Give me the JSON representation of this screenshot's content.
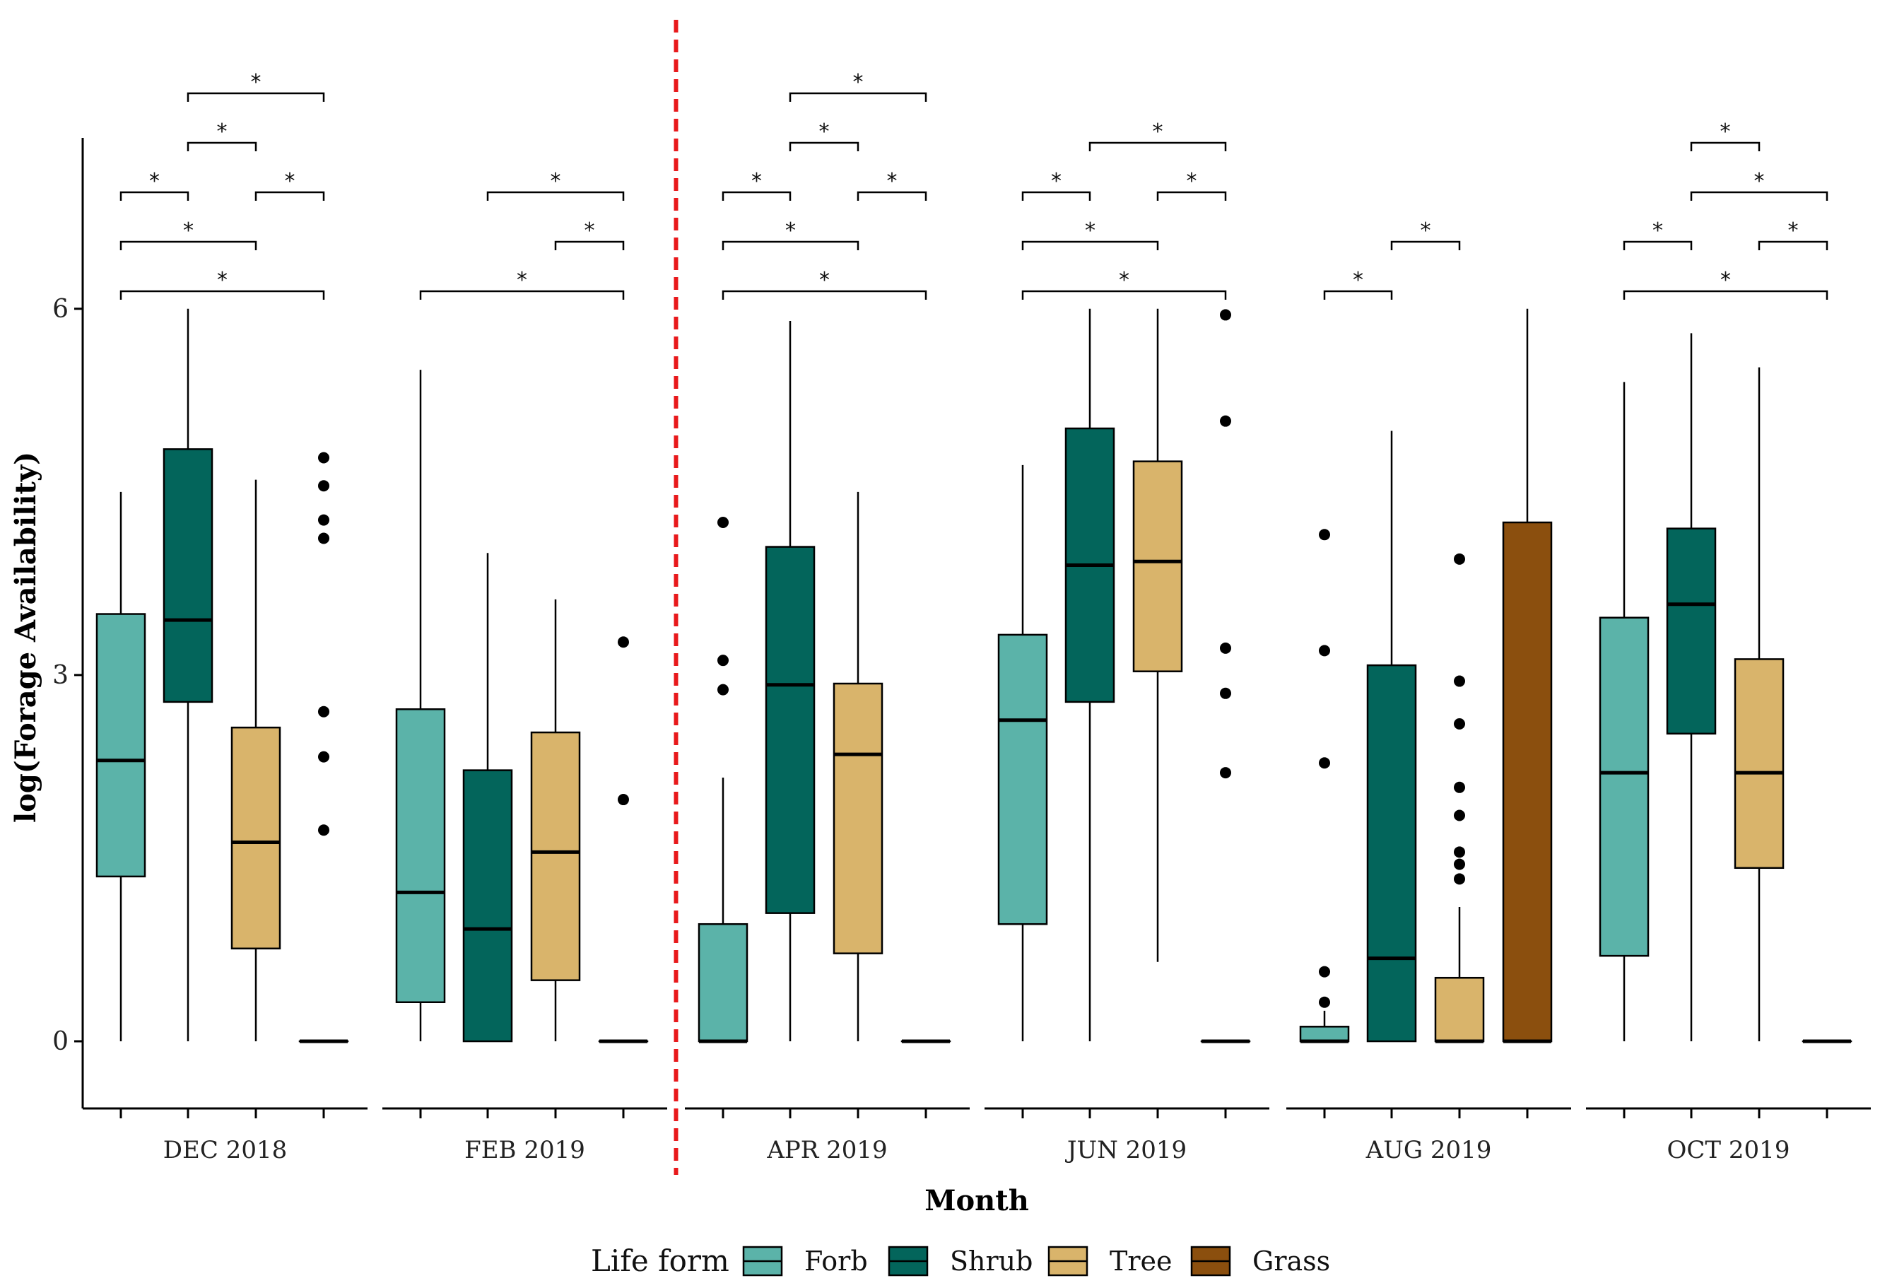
{
  "chart_data": {
    "type": "boxplot",
    "title": "",
    "xlabel": "Month",
    "ylabel": "log(Forage Availability)",
    "ylim": [
      -0.55,
      7.4
    ],
    "yticks": [
      0,
      3,
      6
    ],
    "grid": false,
    "legend": {
      "title": "Life form",
      "position": "bottom",
      "entries": [
        {
          "name": "Forb",
          "color": "#5BB3A9"
        },
        {
          "name": "Shrub",
          "color": "#03655B"
        },
        {
          "name": "Tree",
          "color": "#D9B46B"
        },
        {
          "name": "Grass",
          "color": "#8B4F0E"
        }
      ]
    },
    "separator": {
      "after_panel": 1,
      "color": "#E8191B",
      "style": "dashed"
    },
    "panels": [
      {
        "label": "DEC 2018",
        "boxes": [
          {
            "group": "Forb",
            "min": 0,
            "q1": 1.35,
            "median": 2.3,
            "q3": 3.5,
            "max": 4.5,
            "outliers": []
          },
          {
            "group": "Shrub",
            "min": 0,
            "q1": 2.78,
            "median": 3.45,
            "q3": 4.85,
            "max": 6.0,
            "outliers": []
          },
          {
            "group": "Tree",
            "min": 0,
            "q1": 0.76,
            "median": 1.63,
            "q3": 2.57,
            "max": 4.6,
            "outliers": []
          },
          {
            "group": "Grass",
            "min": 0,
            "q1": 0,
            "median": 0,
            "q3": 0,
            "max": 0,
            "outliers": [
              4.78,
              4.55,
              4.27,
              4.12,
              2.7,
              2.33,
              1.73
            ]
          }
        ],
        "comparisons": [
          {
            "from": 1,
            "to": 4,
            "level": 1,
            "label": "*"
          },
          {
            "from": 1,
            "to": 3,
            "level": 2,
            "label": "*"
          },
          {
            "from": 1,
            "to": 2,
            "level": 3,
            "label": "*"
          },
          {
            "from": 3,
            "to": 4,
            "level": 3,
            "label": "*"
          },
          {
            "from": 2,
            "to": 3,
            "level": 4,
            "label": "*"
          },
          {
            "from": 2,
            "to": 4,
            "level": 5,
            "label": "*"
          }
        ]
      },
      {
        "label": "FEB 2019",
        "boxes": [
          {
            "group": "Forb",
            "min": 0,
            "q1": 0.32,
            "median": 1.22,
            "q3": 2.72,
            "max": 5.5,
            "outliers": []
          },
          {
            "group": "Shrub",
            "min": 0,
            "q1": 0,
            "median": 0.92,
            "q3": 2.22,
            "max": 4.0,
            "outliers": []
          },
          {
            "group": "Tree",
            "min": 0,
            "q1": 0.5,
            "median": 1.55,
            "q3": 2.53,
            "max": 3.62,
            "outliers": []
          },
          {
            "group": "Grass",
            "min": 0,
            "q1": 0,
            "median": 0,
            "q3": 0,
            "max": 0,
            "outliers": [
              3.27,
              1.98
            ]
          }
        ],
        "comparisons": [
          {
            "from": 1,
            "to": 4,
            "level": 1,
            "label": "*"
          },
          {
            "from": 3,
            "to": 4,
            "level": 2,
            "label": "*"
          },
          {
            "from": 2,
            "to": 4,
            "level": 3,
            "label": "*"
          }
        ]
      },
      {
        "label": "APR 2019",
        "boxes": [
          {
            "group": "Forb",
            "min": 0,
            "q1": 0,
            "median": 0,
            "q3": 0.96,
            "max": 2.16,
            "outliers": [
              4.25,
              3.12,
              2.88
            ]
          },
          {
            "group": "Shrub",
            "min": 0,
            "q1": 1.05,
            "median": 2.92,
            "q3": 4.05,
            "max": 5.9,
            "outliers": []
          },
          {
            "group": "Tree",
            "min": 0,
            "q1": 0.72,
            "median": 2.35,
            "q3": 2.93,
            "max": 4.5,
            "outliers": []
          },
          {
            "group": "Grass",
            "min": 0,
            "q1": 0,
            "median": 0,
            "q3": 0,
            "max": 0,
            "outliers": []
          }
        ],
        "comparisons": [
          {
            "from": 1,
            "to": 4,
            "level": 1,
            "label": "*"
          },
          {
            "from": 1,
            "to": 3,
            "level": 2,
            "label": "*"
          },
          {
            "from": 1,
            "to": 2,
            "level": 3,
            "label": "*"
          },
          {
            "from": 3,
            "to": 4,
            "level": 3,
            "label": "*"
          },
          {
            "from": 2,
            "to": 3,
            "level": 4,
            "label": "*"
          },
          {
            "from": 2,
            "to": 4,
            "level": 5,
            "label": "*"
          }
        ]
      },
      {
        "label": "JUN 2019",
        "boxes": [
          {
            "group": "Forb",
            "min": 0,
            "q1": 0.96,
            "median": 2.63,
            "q3": 3.33,
            "max": 4.72,
            "outliers": []
          },
          {
            "group": "Shrub",
            "min": 0,
            "q1": 2.78,
            "median": 3.9,
            "q3": 5.02,
            "max": 6.0,
            "outliers": []
          },
          {
            "group": "Tree",
            "min": 0.65,
            "q1": 3.03,
            "median": 3.93,
            "q3": 4.75,
            "max": 6.0,
            "outliers": []
          },
          {
            "group": "Grass",
            "min": 0,
            "q1": 0,
            "median": 0,
            "q3": 0,
            "max": 0,
            "outliers": [
              5.95,
              5.08,
              3.22,
              2.85,
              2.2
            ]
          }
        ],
        "comparisons": [
          {
            "from": 1,
            "to": 4,
            "level": 1,
            "label": "*"
          },
          {
            "from": 1,
            "to": 3,
            "level": 2,
            "label": "*"
          },
          {
            "from": 1,
            "to": 2,
            "level": 3,
            "label": "*"
          },
          {
            "from": 3,
            "to": 4,
            "level": 3,
            "label": "*"
          },
          {
            "from": 2,
            "to": 4,
            "level": 4,
            "label": "*"
          }
        ]
      },
      {
        "label": "AUG 2019",
        "boxes": [
          {
            "group": "Forb",
            "min": 0,
            "q1": 0,
            "median": 0,
            "q3": 0.12,
            "max": 0.25,
            "outliers": [
              4.15,
              3.2,
              2.28,
              0.57,
              0.32
            ]
          },
          {
            "group": "Shrub",
            "min": 0,
            "q1": 0,
            "median": 0.68,
            "q3": 3.08,
            "max": 5.0,
            "outliers": []
          },
          {
            "group": "Tree",
            "min": 0,
            "q1": 0,
            "median": 0,
            "q3": 0.52,
            "max": 1.1,
            "outliers": [
              3.95,
              2.95,
              2.6,
              2.08,
              1.85,
              1.55,
              1.45,
              1.33
            ]
          },
          {
            "group": "Grass",
            "min": 0,
            "q1": 0,
            "median": 0,
            "q3": 4.25,
            "max": 6.0,
            "outliers": []
          }
        ],
        "comparisons": [
          {
            "from": 1,
            "to": 2,
            "level": 1,
            "label": "*"
          },
          {
            "from": 2,
            "to": 3,
            "level": 2,
            "label": "*"
          }
        ]
      },
      {
        "label": "OCT 2019",
        "boxes": [
          {
            "group": "Forb",
            "min": 0,
            "q1": 0.7,
            "median": 2.2,
            "q3": 3.47,
            "max": 5.4,
            "outliers": []
          },
          {
            "group": "Shrub",
            "min": 0,
            "q1": 2.52,
            "median": 3.58,
            "q3": 4.2,
            "max": 5.8,
            "outliers": []
          },
          {
            "group": "Tree",
            "min": 0,
            "q1": 1.42,
            "median": 2.2,
            "q3": 3.13,
            "max": 5.52,
            "outliers": []
          },
          {
            "group": "Grass",
            "min": 0,
            "q1": 0,
            "median": 0,
            "q3": 0,
            "max": 0,
            "outliers": []
          }
        ],
        "comparisons": [
          {
            "from": 1,
            "to": 4,
            "level": 1,
            "label": "*"
          },
          {
            "from": 1,
            "to": 2,
            "level": 2,
            "label": "*"
          },
          {
            "from": 3,
            "to": 4,
            "level": 2,
            "label": "*"
          },
          {
            "from": 2,
            "to": 4,
            "level": 3,
            "label": "*"
          },
          {
            "from": 2,
            "to": 3,
            "level": 4,
            "label": "*"
          }
        ]
      }
    ]
  }
}
